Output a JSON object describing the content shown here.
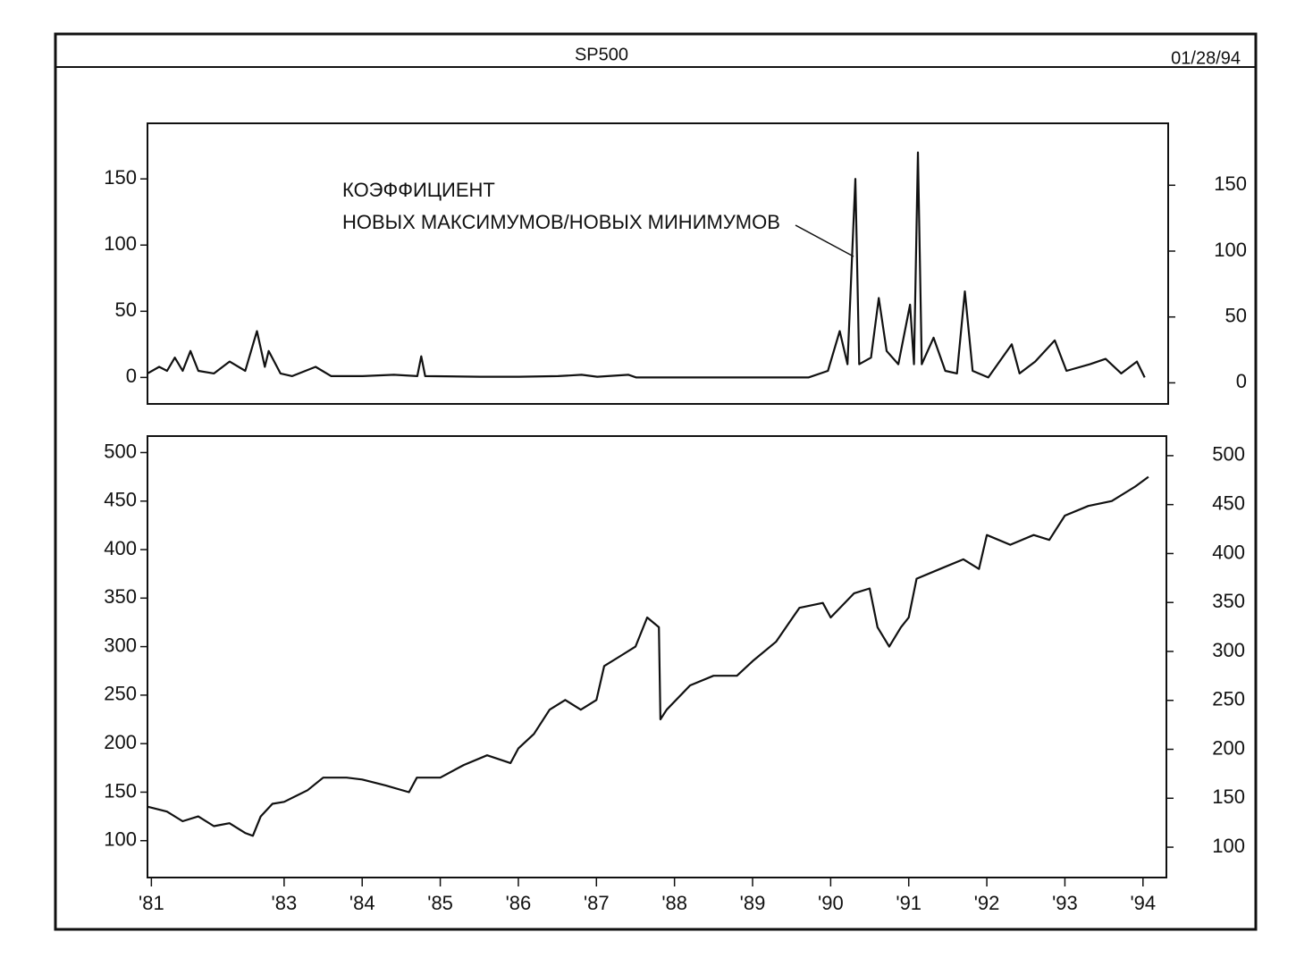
{
  "header": {
    "title": "SP500",
    "date": "01/28/94"
  },
  "chart_data": [
    {
      "type": "line",
      "annotation": [
        "КОЭФФИЦИЕНТ",
        "НОВЫХ МАКСИМУМОВ/НОВЫХ МИНИМУМОВ"
      ],
      "xlim": [
        1981.25,
        1994.3
      ],
      "ylim": [
        -20,
        192
      ],
      "yticks": [
        0,
        50,
        100,
        150
      ],
      "y2lim": [
        -16,
        197
      ],
      "y2ticks": [
        0,
        50,
        100,
        150
      ],
      "series": [
        {
          "color": "#111111",
          "x": [
            1981.25,
            1981.4,
            1981.5,
            1981.6,
            1981.7,
            1981.8,
            1981.9,
            1982.1,
            1982.3,
            1982.5,
            1982.6,
            1982.65,
            1982.75,
            1982.8,
            1982.95,
            1983.1,
            1983.4,
            1983.6,
            1984.0,
            1984.4,
            1984.7,
            1984.75,
            1984.8,
            1985.5,
            1986.0,
            1986.5,
            1986.8,
            1987.0,
            1987.4,
            1987.5,
            1988.0,
            1989.0,
            1989.7,
            1989.95,
            1990.1,
            1990.2,
            1990.3,
            1990.35,
            1990.5,
            1990.6,
            1990.7,
            1990.85,
            1991.0,
            1991.05,
            1991.1,
            1991.15,
            1991.3,
            1991.45,
            1991.6,
            1991.7,
            1991.8,
            1992.0,
            1992.3,
            1992.4,
            1992.6,
            1992.85,
            1993.0,
            1993.3,
            1993.5,
            1993.7,
            1993.9,
            1994.0
          ],
          "values": [
            3,
            8,
            5,
            15,
            5,
            20,
            5,
            3,
            12,
            5,
            25,
            35,
            8,
            20,
            3,
            1,
            8,
            1,
            1,
            2,
            1,
            16,
            1,
            0.5,
            0.5,
            1,
            2,
            0.5,
            2,
            0,
            0,
            0,
            0,
            5,
            35,
            10,
            150,
            10,
            15,
            60,
            20,
            10,
            55,
            10,
            170,
            10,
            30,
            5,
            3,
            65,
            5,
            0,
            25,
            3,
            12,
            28,
            5,
            10,
            14,
            3,
            12,
            0
          ]
        }
      ]
    },
    {
      "type": "line",
      "xlim": [
        1981.25,
        1994.3
      ],
      "xticks": [
        {
          "value": 1981.3,
          "label": "'81"
        },
        {
          "value": 1983,
          "label": "'83"
        },
        {
          "value": 1984,
          "label": "'84"
        },
        {
          "value": 1985,
          "label": "'85"
        },
        {
          "value": 1986,
          "label": "'86"
        },
        {
          "value": 1987,
          "label": "'87"
        },
        {
          "value": 1988,
          "label": "'88"
        },
        {
          "value": 1989,
          "label": "'89"
        },
        {
          "value": 1990,
          "label": "'90"
        },
        {
          "value": 1991,
          "label": "'91"
        },
        {
          "value": 1992,
          "label": "'92"
        },
        {
          "value": 1993,
          "label": "'93"
        },
        {
          "value": 1994,
          "label": "'94"
        }
      ],
      "ylim": [
        62,
        517
      ],
      "yticks": [
        100,
        150,
        200,
        250,
        300,
        350,
        400,
        450,
        500
      ],
      "y2lim": [
        69,
        520
      ],
      "y2ticks": [
        100,
        150,
        200,
        250,
        300,
        350,
        400,
        450,
        500
      ],
      "series": [
        {
          "color": "#111111",
          "x": [
            1981.25,
            1981.5,
            1981.7,
            1981.9,
            1982.1,
            1982.3,
            1982.5,
            1982.6,
            1982.7,
            1982.85,
            1983.0,
            1983.3,
            1983.5,
            1983.8,
            1984.0,
            1984.3,
            1984.6,
            1984.7,
            1985.0,
            1985.3,
            1985.6,
            1985.9,
            1986.0,
            1986.2,
            1986.4,
            1986.6,
            1986.8,
            1987.0,
            1987.1,
            1987.3,
            1987.5,
            1987.65,
            1987.8,
            1987.82,
            1987.9,
            1988.2,
            1988.5,
            1988.8,
            1989.0,
            1989.3,
            1989.6,
            1989.9,
            1990.0,
            1990.3,
            1990.5,
            1990.6,
            1990.75,
            1990.9,
            1991.0,
            1991.1,
            1991.4,
            1991.7,
            1991.9,
            1992.0,
            1992.3,
            1992.6,
            1992.8,
            1993.0,
            1993.3,
            1993.6,
            1993.9,
            1994.07
          ],
          "values": [
            135,
            130,
            120,
            125,
            115,
            118,
            108,
            105,
            125,
            138,
            140,
            152,
            165,
            165,
            163,
            157,
            150,
            165,
            165,
            178,
            188,
            180,
            195,
            210,
            235,
            245,
            235,
            245,
            280,
            290,
            300,
            330,
            320,
            225,
            235,
            260,
            270,
            270,
            285,
            305,
            340,
            345,
            330,
            355,
            360,
            320,
            300,
            320,
            330,
            370,
            380,
            390,
            380,
            415,
            405,
            415,
            410,
            435,
            445,
            450,
            465,
            475
          ]
        }
      ]
    }
  ]
}
